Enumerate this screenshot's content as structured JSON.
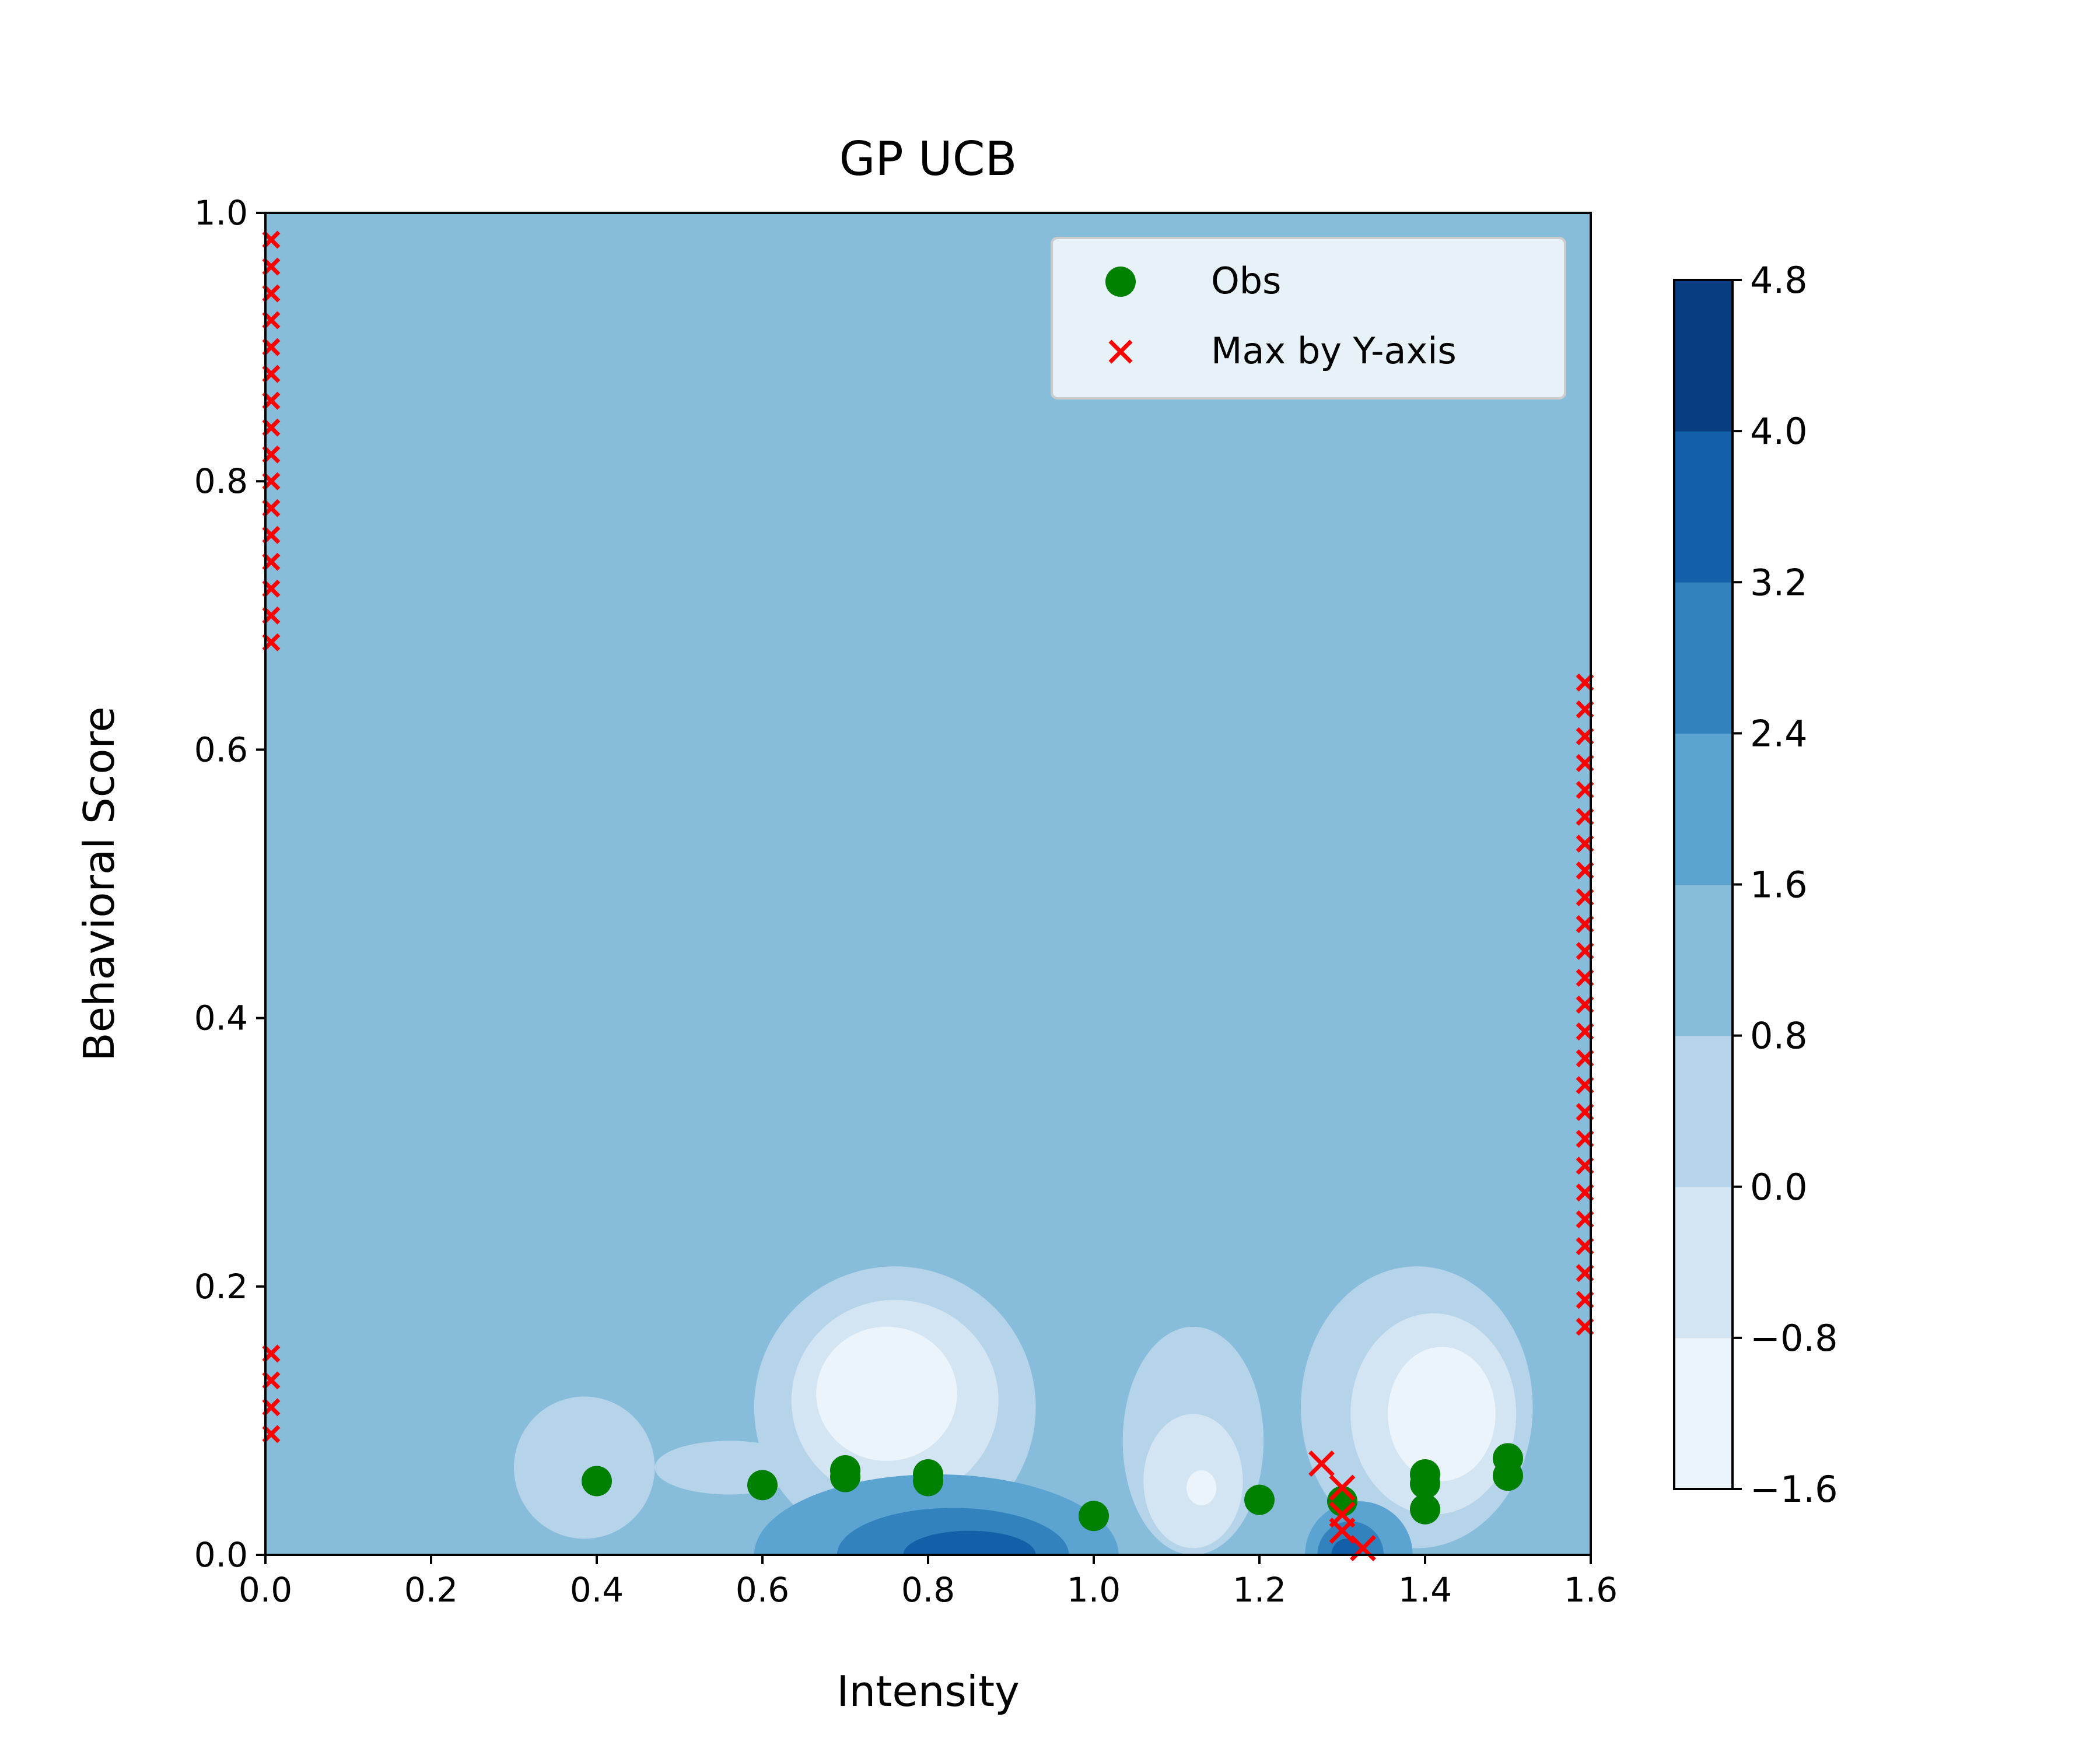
{
  "chart_data": {
    "type": "contour",
    "title": "GP UCB",
    "xlabel": "Intensity",
    "ylabel": "Behavioral Score",
    "xlim": [
      0.0,
      1.6
    ],
    "ylim": [
      0.0,
      1.0
    ],
    "xticks": [
      "0.0",
      "0.2",
      "0.4",
      "0.6",
      "0.8",
      "1.0",
      "1.2",
      "1.4",
      "1.6"
    ],
    "yticks": [
      "0.0",
      "0.2",
      "0.4",
      "0.6",
      "0.8",
      "1.0"
    ],
    "grid": false,
    "legend": {
      "location": "top-right",
      "entries": [
        {
          "label": "Obs",
          "marker": "circle",
          "color": "#008000"
        },
        {
          "label": "Max by Y-axis",
          "marker": "x",
          "color": "#ff0000"
        }
      ]
    },
    "background_level_color": "#87bcdb",
    "colorbar": {
      "tick_labels": [
        "−1.6",
        "−0.8",
        "0.0",
        "0.8",
        "1.6",
        "2.4",
        "3.2",
        "4.0",
        "4.8"
      ],
      "levels": [
        -1.6,
        -0.8,
        0.0,
        0.8,
        1.6,
        2.4,
        3.2,
        4.0,
        4.8
      ],
      "colors": [
        "#ebf3fb",
        "#d3e4f3",
        "#b5d4e9",
        "#87bcdb",
        "#5ba3d0",
        "#3282be",
        "#1460a8",
        "#083d7f"
      ]
    },
    "series": [
      {
        "name": "Obs",
        "marker": "circle",
        "color": "#008000",
        "points": [
          [
            0.4,
            0.055
          ],
          [
            0.6,
            0.052
          ],
          [
            0.7,
            0.058
          ],
          [
            0.7,
            0.063
          ],
          [
            0.8,
            0.055
          ],
          [
            0.8,
            0.06
          ],
          [
            1.0,
            0.029
          ],
          [
            1.2,
            0.041
          ],
          [
            1.3,
            0.04
          ],
          [
            1.4,
            0.034
          ],
          [
            1.4,
            0.053
          ],
          [
            1.4,
            0.06
          ],
          [
            1.5,
            0.059
          ],
          [
            1.5,
            0.072
          ]
        ]
      },
      {
        "name": "Max by Y-axis",
        "marker": "x",
        "color": "#ff0000",
        "groups": [
          {
            "x": 0.007,
            "y_from": 0.68,
            "y_to": 0.985,
            "step": 0.02
          },
          {
            "x": 0.007,
            "y_from": 0.09,
            "y_to": 0.15,
            "step": 0.02
          },
          {
            "x": 1.593,
            "y_from": 0.17,
            "y_to": 0.65,
            "step": 0.02
          }
        ],
        "points": [
          [
            1.275,
            0.068
          ],
          [
            1.3,
            0.05
          ],
          [
            1.3,
            0.03
          ],
          [
            1.3,
            0.018
          ],
          [
            1.325,
            0.005
          ]
        ]
      }
    ],
    "contour_regions": [
      {
        "level_index": 2,
        "shape": "ellipse",
        "cx": 0.385,
        "cy": 0.065,
        "rx": 0.085,
        "ry": 0.053
      },
      {
        "level_index": 2,
        "shape": "ellipse",
        "cx": 0.56,
        "cy": 0.065,
        "rx": 0.09,
        "ry": 0.02
      },
      {
        "level_index": 2,
        "shape": "ellipse",
        "cx": 0.76,
        "cy": 0.11,
        "rx": 0.17,
        "ry": 0.105
      },
      {
        "level_index": 2,
        "shape": "ellipse",
        "cx": 1.12,
        "cy": 0.085,
        "rx": 0.085,
        "ry": 0.085
      },
      {
        "level_index": 2,
        "shape": "ellipse",
        "cx": 1.39,
        "cy": 0.11,
        "rx": 0.14,
        "ry": 0.105
      },
      {
        "level_index": 1,
        "shape": "ellipse",
        "cx": 0.76,
        "cy": 0.115,
        "rx": 0.125,
        "ry": 0.075
      },
      {
        "level_index": 1,
        "shape": "ellipse",
        "cx": 1.12,
        "cy": 0.055,
        "rx": 0.06,
        "ry": 0.05
      },
      {
        "level_index": 1,
        "shape": "ellipse",
        "cx": 1.41,
        "cy": 0.105,
        "rx": 0.1,
        "ry": 0.075
      },
      {
        "level_index": 0,
        "shape": "ellipse",
        "cx": 0.75,
        "cy": 0.12,
        "rx": 0.085,
        "ry": 0.05
      },
      {
        "level_index": 0,
        "shape": "ellipse",
        "cx": 1.13,
        "cy": 0.05,
        "rx": 0.018,
        "ry": 0.013
      },
      {
        "level_index": 0,
        "shape": "ellipse",
        "cx": 1.42,
        "cy": 0.105,
        "rx": 0.065,
        "ry": 0.05
      },
      {
        "level_index": 4,
        "shape": "ellipse",
        "cx": 0.81,
        "cy": 0.0,
        "rx": 0.22,
        "ry": 0.06
      },
      {
        "level_index": 4,
        "shape": "ellipse",
        "cx": 1.32,
        "cy": 0.0,
        "rx": 0.065,
        "ry": 0.04
      },
      {
        "level_index": 5,
        "shape": "ellipse",
        "cx": 0.83,
        "cy": 0.0,
        "rx": 0.14,
        "ry": 0.035
      },
      {
        "level_index": 5,
        "shape": "ellipse",
        "cx": 1.31,
        "cy": 0.0,
        "rx": 0.04,
        "ry": 0.025
      },
      {
        "level_index": 6,
        "shape": "ellipse",
        "cx": 0.85,
        "cy": 0.0,
        "rx": 0.08,
        "ry": 0.018
      },
      {
        "level_index": 6,
        "shape": "ellipse",
        "cx": 1.305,
        "cy": 0.0,
        "rx": 0.018,
        "ry": 0.012
      }
    ]
  }
}
